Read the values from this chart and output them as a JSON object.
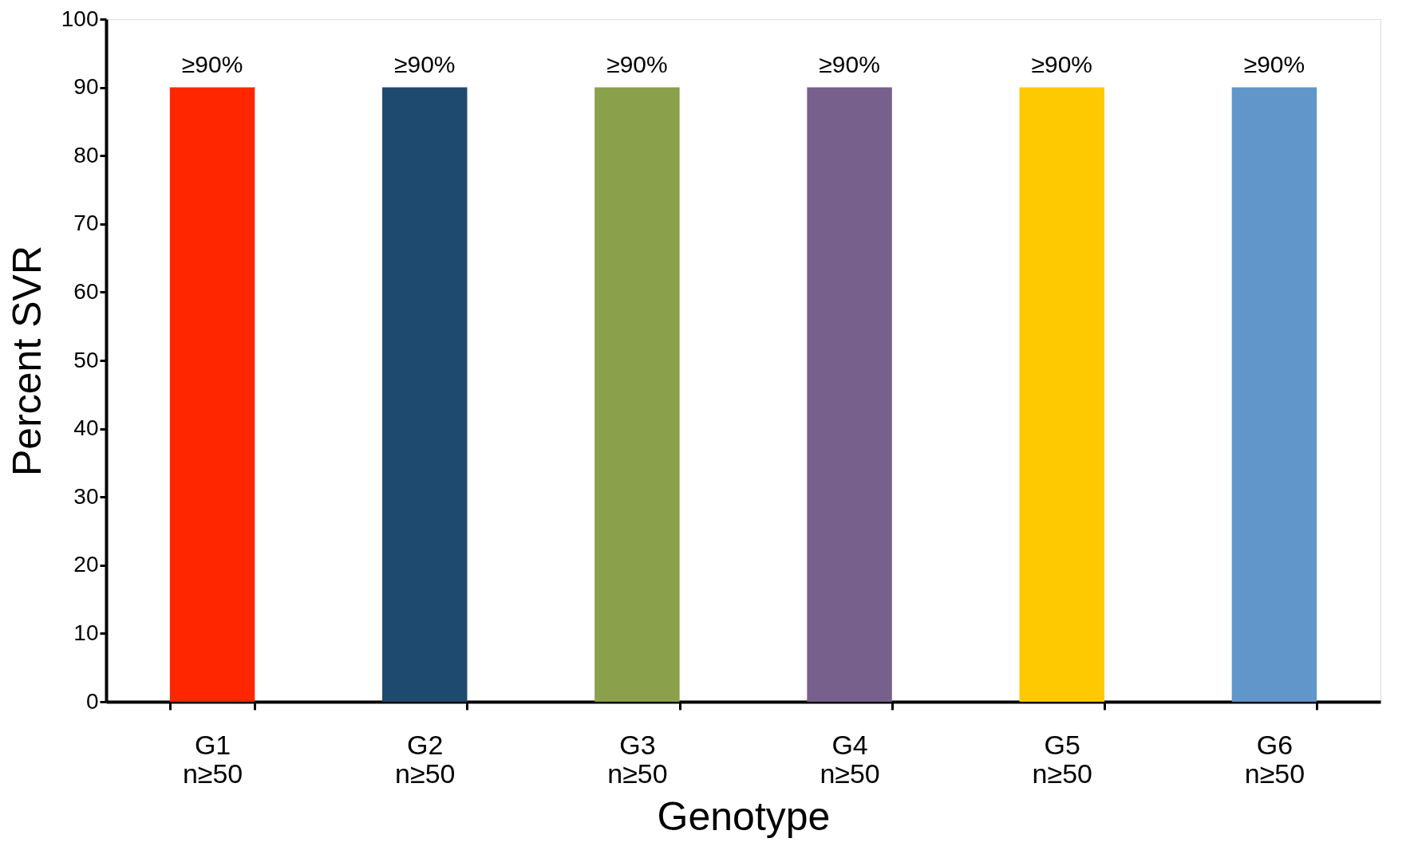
{
  "chart_data": {
    "type": "bar",
    "xlabel": "Genotype",
    "ylabel": "Percent SVR",
    "categories": [
      "G1\nn≥50",
      "G2\nn≥50",
      "G3\nn≥50",
      "G4\nn≥50",
      "G5\nn≥50",
      "G6\nn≥50"
    ],
    "values": [
      90,
      90,
      90,
      90,
      90,
      90
    ],
    "colors": [
      "#ff2600",
      "#1f4a70",
      "#8aa04b",
      "#77608c",
      "#ffc900",
      "#6096c9"
    ],
    "value_labels": [
      "≥90%",
      "≥90%",
      "≥90%",
      "≥90%",
      "≥90%",
      "≥90%"
    ],
    "ylim": [
      0,
      100
    ],
    "yticks": [
      0,
      10,
      20,
      30,
      40,
      50,
      60,
      70,
      80,
      90,
      100
    ],
    "grid": false
  }
}
